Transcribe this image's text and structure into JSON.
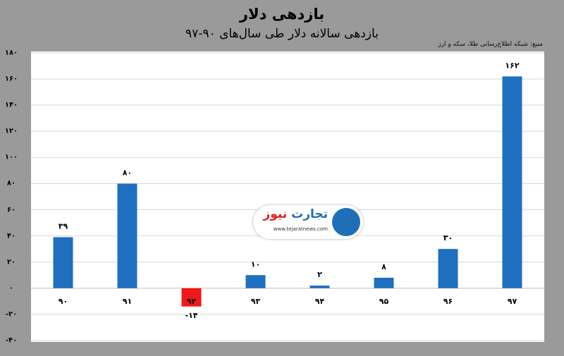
{
  "header": {
    "title": "بازدهی دلار",
    "subtitle": "بازدهی سالانه دلار طی سال‌های ۹۰-۹۷",
    "source": "منبع: شبکه اطلاع‌رسانی طلا، سکه و ارز"
  },
  "watermark": {
    "brand_part1": "تجارت",
    "brand_part2": "نیوز",
    "url": "www.tejaratnews.com",
    "brand_color": "#1f6fb8",
    "accent_color": "#e02020"
  },
  "chart_data": {
    "type": "bar",
    "title": "بازدهی دلار",
    "subtitle": "بازدهی سالانه دلار طی سال‌های ۹۰-۹۷",
    "categories": [
      "۹۰",
      "۹۱",
      "۹۲",
      "۹۳",
      "۹۴",
      "۹۵",
      "۹۶",
      "۹۷"
    ],
    "values": [
      39,
      80,
      -14,
      10,
      2,
      8,
      30,
      162
    ],
    "value_labels": [
      "۳۹",
      "۸۰",
      "-۱۴",
      "۱۰",
      "۲",
      "۸",
      "۳۰",
      "۱۶۲"
    ],
    "ylim": [
      -40,
      180
    ],
    "yticks": [
      180,
      160,
      140,
      120,
      100,
      80,
      60,
      40,
      20,
      0,
      -20,
      -40
    ],
    "ytick_labels": [
      "۱۸۰",
      "۱۶۰",
      "۱۴۰",
      "۱۲۰",
      "۱۰۰",
      "۸۰",
      "۶۰",
      "۴۰",
      "۲۰",
      "۰",
      "-۲۰",
      "-۴۰"
    ],
    "grid": true,
    "colors": {
      "positive": "#1f6fbf",
      "negative": "#f01818",
      "grid": "#d9d9d9",
      "axis": "#bfbfbf"
    }
  }
}
